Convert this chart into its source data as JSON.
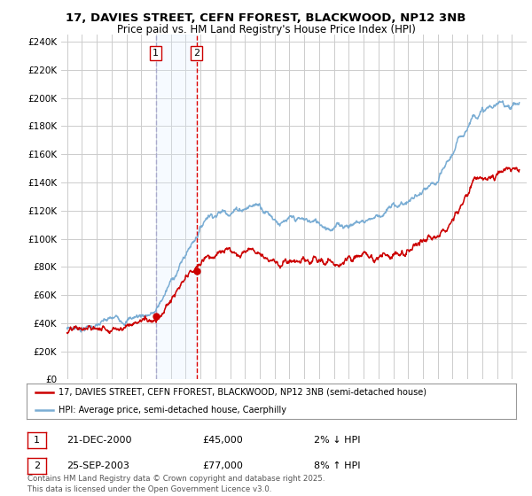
{
  "title_line1": "17, DAVIES STREET, CEFN FFOREST, BLACKWOOD, NP12 3NB",
  "title_line2": "Price paid vs. HM Land Registry's House Price Index (HPI)",
  "ylim": [
    0,
    245000
  ],
  "yticks": [
    0,
    20000,
    40000,
    60000,
    80000,
    100000,
    120000,
    140000,
    160000,
    180000,
    200000,
    220000,
    240000
  ],
  "ytick_labels": [
    "£0",
    "£20K",
    "£40K",
    "£60K",
    "£80K",
    "£100K",
    "£120K",
    "£140K",
    "£160K",
    "£180K",
    "£200K",
    "£220K",
    "£240K"
  ],
  "sale1_year": 2000.97,
  "sale1_price": 45000,
  "sale1_date": "21-DEC-2000",
  "sale1_pct": "2% ↓ HPI",
  "sale2_year": 2003.73,
  "sale2_price": 77000,
  "sale2_date": "25-SEP-2003",
  "sale2_pct": "8% ↑ HPI",
  "legend_line1": "17, DAVIES STREET, CEFN FFOREST, BLACKWOOD, NP12 3NB (semi-detached house)",
  "legend_line2": "HPI: Average price, semi-detached house, Caerphilly",
  "footer": "Contains HM Land Registry data © Crown copyright and database right 2025.\nThis data is licensed under the Open Government Licence v3.0.",
  "line_color": "#cc0000",
  "hpi_color": "#7aadd4",
  "background_color": "#ffffff",
  "grid_color": "#cccccc",
  "span_color": "#ddeeff",
  "vline1_color": "#aaaacc",
  "vline2_color": "#dd0000"
}
